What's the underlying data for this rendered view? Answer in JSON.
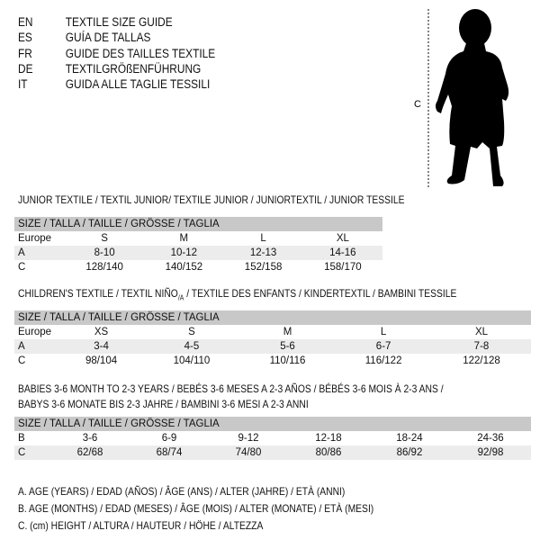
{
  "languages": [
    {
      "code": "EN",
      "text": "TEXTILE SIZE GUIDE"
    },
    {
      "code": "ES",
      "text": "GUÍA DE TALLAS"
    },
    {
      "code": "FR",
      "text": "GUIDE DES TAILLES TEXTILE"
    },
    {
      "code": "DE",
      "text": "TEXTILGRÖßENFÜHRUNG"
    },
    {
      "code": "IT",
      "text": "GUIDA ALLE TAGLIE TESSILI"
    }
  ],
  "figure": {
    "label": "C",
    "icon": "child-silhouette"
  },
  "header_label": "SIZE / TALLA / TAILLE / GRÖSSE / TAGLIA",
  "junior": {
    "title": "JUNIOR TEXTILE / TEXTIL JUNIOR/ TEXTILE JUNIOR / JUNIORTEXTIL / JUNIOR TESSILE",
    "rows": [
      {
        "label": "Europe",
        "values": [
          "S",
          "M",
          "L",
          "XL"
        ]
      },
      {
        "label": "A",
        "values": [
          "8-10",
          "10-12",
          "12-13",
          "14-16"
        ]
      },
      {
        "label": "C",
        "values": [
          "128/140",
          "140/152",
          "152/158",
          "158/170"
        ]
      }
    ]
  },
  "children": {
    "title_a": "CHILDREN'S TEXTILE / TEXTIL NIÑO",
    "title_sub": "/A",
    "title_b": " / TEXTILE DES ENFANTS / KINDERTEXTIL / BAMBINI TESSILE",
    "rows": [
      {
        "label": "Europe",
        "values": [
          "XS",
          "S",
          "M",
          "L",
          "XL"
        ]
      },
      {
        "label": "A",
        "values": [
          "3-4",
          "4-5",
          "5-6",
          "6-7",
          "7-8"
        ]
      },
      {
        "label": "C",
        "values": [
          "98/104",
          "104/110",
          "110/116",
          "116/122",
          "122/128"
        ]
      }
    ]
  },
  "babies": {
    "title_line1": "BABIES 3-6 MONTH TO 2-3 YEARS / BEBÉS 3-6 MESES A 2-3 AÑOS / BÉBÉS 3-6 MOIS À 2-3 ANS /",
    "title_line2": "BABYS 3-6 MONATE BIS 2-3 JAHRE / BAMBINI 3-6 MESI A 2-3 ANNI",
    "rows": [
      {
        "label": "B",
        "values": [
          "3-6",
          "6-9",
          "9-12",
          "12-18",
          "18-24",
          "24-36"
        ]
      },
      {
        "label": "C",
        "values": [
          "62/68",
          "68/74",
          "74/80",
          "80/86",
          "86/92",
          "92/98"
        ]
      }
    ]
  },
  "legend": [
    "A. AGE (YEARS) / EDAD (AÑOS) / ÂGE (ANS) / ALTER (JAHRE) / ETÀ (ANNI)",
    "B. AGE (MONTHS) / EDAD (MESES) / ÂGE (MOIS) / ALTER (MONATE) / ETÀ (MESI)",
    "C. (cm) HEIGHT / ALTURA / HAUTEUR / HÖHE / ALTEZZA"
  ]
}
